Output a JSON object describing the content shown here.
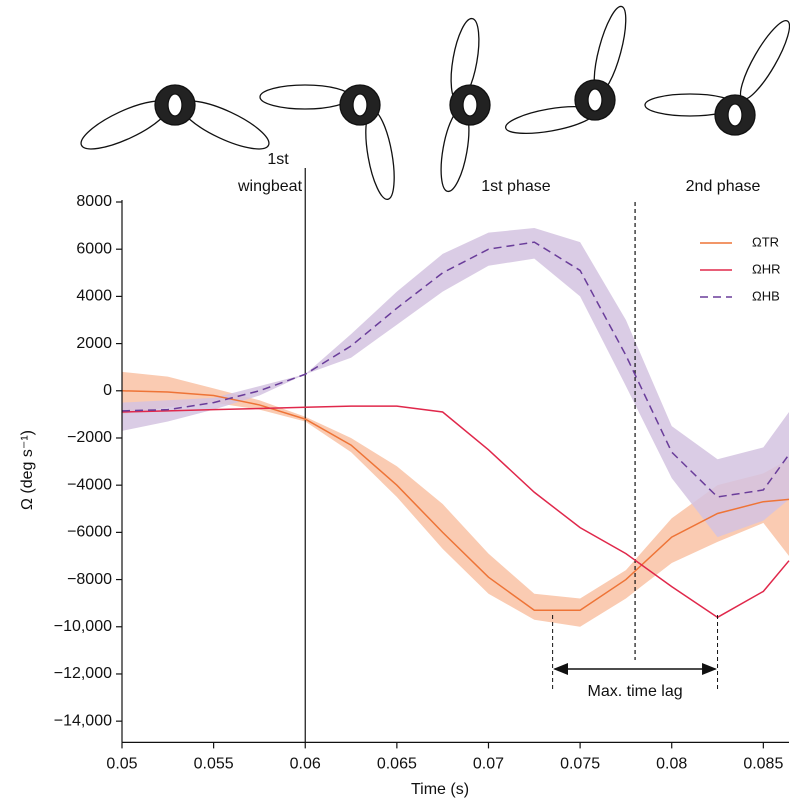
{
  "chart_data": {
    "type": "line",
    "x_label": "Time (s)",
    "y_label": "Ω (deg s⁻¹)",
    "x": [
      0.05,
      0.0525,
      0.055,
      0.0575,
      0.06,
      0.0625,
      0.065,
      0.0675,
      0.07,
      0.0725,
      0.075,
      0.0775,
      0.08,
      0.0825,
      0.085,
      0.0864
    ],
    "series": [
      {
        "name": "ΩTR",
        "color": "#ee7437",
        "band_color": "#f9c2a5",
        "dash": false,
        "values": [
          0,
          -50,
          -200,
          -600,
          -1200,
          -2300,
          -4000,
          -6000,
          -7900,
          -9300,
          -9300,
          -8000,
          -6200,
          -5200,
          -4700,
          -4600
        ],
        "upper": [
          800,
          600,
          100,
          -400,
          -1100,
          -2000,
          -3200,
          -4800,
          -6900,
          -8600,
          -8800,
          -7600,
          -5400,
          -4000,
          -3500,
          -2900
        ],
        "lower": [
          -1000,
          -700,
          -500,
          -800,
          -1300,
          -2600,
          -4500,
          -6700,
          -8600,
          -9700,
          -10000,
          -8800,
          -7300,
          -6400,
          -5600,
          -7000
        ]
      },
      {
        "name": "ΩHR",
        "color": "#e0284b",
        "dash": false,
        "values": [
          -900,
          -850,
          -800,
          -750,
          -700,
          -650,
          -650,
          -900,
          -2500,
          -4300,
          -5800,
          -6900,
          -8300,
          -9600,
          -8500,
          -7200
        ]
      },
      {
        "name": "ΩHB",
        "color": "#6a3d9a",
        "band_color": "#d3c3e1",
        "dash": true,
        "values": [
          -850,
          -800,
          -500,
          0,
          700,
          1900,
          3500,
          5000,
          6000,
          6300,
          5100,
          1500,
          -2600,
          -4500,
          -4200,
          -2700
        ],
        "upper": [
          -500,
          -400,
          -300,
          200,
          700,
          2400,
          4200,
          5800,
          6700,
          6900,
          6300,
          3000,
          -1500,
          -2900,
          -2400,
          -900
        ],
        "lower": [
          -1700,
          -1300,
          -800,
          -200,
          700,
          1400,
          2800,
          4200,
          5300,
          5600,
          4000,
          200,
          -3700,
          -6200,
          -5500,
          -4600
        ]
      }
    ],
    "xlim": [
      0.05,
      0.0864
    ],
    "xticks": [
      0.05,
      0.055,
      0.06,
      0.065,
      0.07,
      0.075,
      0.08,
      0.085
    ],
    "ylim": [
      -14900,
      8000
    ],
    "yticks": [
      {
        "value": -14000,
        "label": "−14,000"
      },
      {
        "value": -12000,
        "label": "−12,000"
      },
      {
        "value": -10000,
        "label": "−10,000"
      },
      {
        "value": -8000,
        "label": "−8000"
      },
      {
        "value": -6000,
        "label": "−6000"
      },
      {
        "value": -4000,
        "label": "−4000"
      },
      {
        "value": -2000,
        "label": "−2000"
      },
      0,
      2000,
      4000,
      6000,
      8000
    ],
    "vlines": [
      {
        "x": 0.06,
        "dash": false
      },
      {
        "x": 0.078,
        "dash": true
      }
    ],
    "wingbeat_label": [
      "1st",
      "wingbeat"
    ],
    "phase_labels": [
      {
        "text": "1st phase",
        "x": 0.0715
      },
      {
        "text": "2nd phase",
        "x": 0.0828
      }
    ],
    "time_lag": {
      "label": "Max. time lag",
      "x": [
        0.0735,
        0.0825
      ]
    },
    "legend": "top-right"
  }
}
